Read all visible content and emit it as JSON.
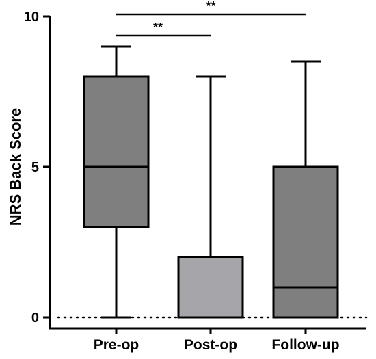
{
  "chart_data": {
    "type": "box",
    "title": "",
    "xlabel": "",
    "ylabel": "NRS Back  Score",
    "ylim": [
      0,
      10
    ],
    "yticks": [
      "0",
      "5",
      "10"
    ],
    "baseline": 0,
    "grid": false,
    "legend": "none",
    "categories": [
      "Pre-op",
      "Post-op",
      "Follow-up"
    ],
    "boxes": [
      {
        "category": "Pre-op",
        "min": 0,
        "q1": 3,
        "median": 5,
        "q3": 8,
        "max": 9,
        "color": "#7f7f7f"
      },
      {
        "category": "Post-op",
        "min": 0,
        "q1": 0,
        "median": 0,
        "q3": 2,
        "max": 8,
        "color": "#a6a5aa"
      },
      {
        "category": "Follow-up",
        "min": 0,
        "q1": 0,
        "median": 1,
        "q3": 5,
        "max": 8.5,
        "color": "#7f7f7f"
      }
    ],
    "significance": [
      {
        "from": "Pre-op",
        "to": "Post-op",
        "label": "**",
        "level": 9.5
      },
      {
        "from": "Pre-op",
        "to": "Follow-up",
        "label": "**",
        "level": 10
      }
    ]
  }
}
